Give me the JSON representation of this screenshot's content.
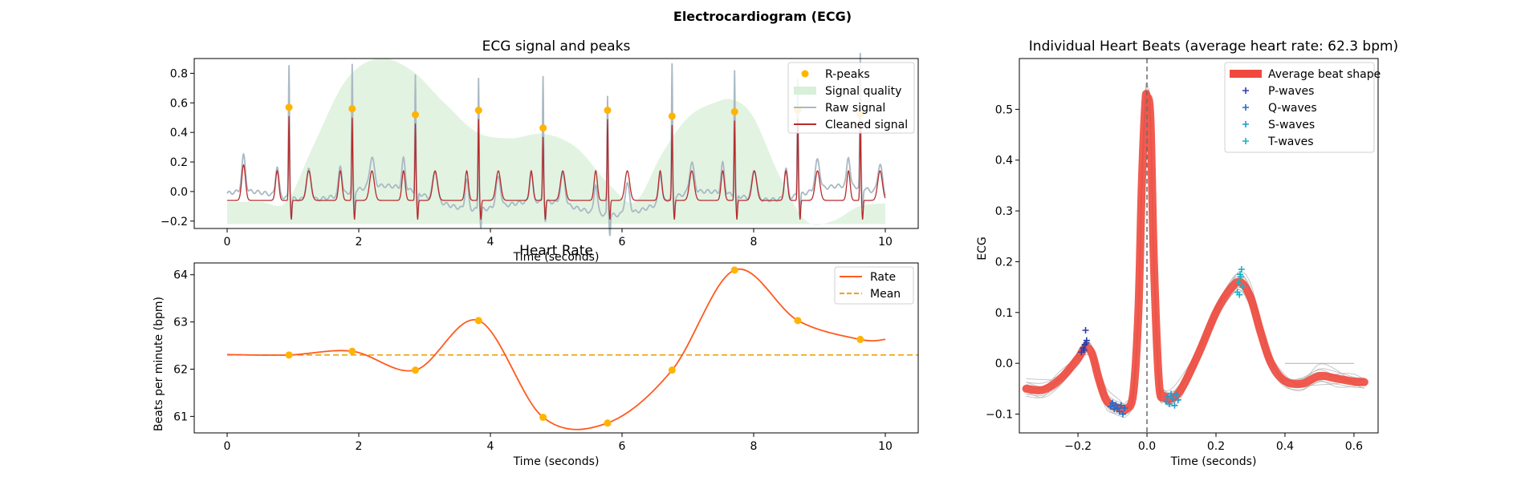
{
  "figure": {
    "title": "Electrocardiogram (ECG)",
    "colors": {
      "raw": "#a9b9c4",
      "cleaned": "#b52b2b",
      "quality_fill": "#d8efd8",
      "peaks": "#ffb400",
      "rate": "#ff5a1f",
      "mean": "#f0a30a",
      "avg_beat": "#f0493d",
      "p_waves": "#2b3fa8",
      "q_waves": "#1f6ecf",
      "s_waves": "#1f9bd1",
      "t_waves": "#17b3c6",
      "beat_lines": "#b0b0b0",
      "vline": "#6a6a6a"
    }
  },
  "chart_data": [
    {
      "id": "signal",
      "type": "line",
      "title": "ECG signal and peaks",
      "xlabel": "Time (seconds)",
      "ylabel": "",
      "xlim": [
        -0.5,
        10.5
      ],
      "ylim": [
        -0.25,
        0.9
      ],
      "xticks": [
        0,
        2,
        4,
        6,
        8,
        10
      ],
      "yticks": [
        -0.2,
        0.0,
        0.2,
        0.4,
        0.6,
        0.8
      ],
      "ytick_labels": [
        "−0.2",
        "0.0",
        "0.2",
        "0.4",
        "0.6",
        "0.8"
      ],
      "legend_position": "top-right",
      "legend": [
        "R-peaks",
        "Signal quality",
        "Raw signal",
        "Cleaned signal"
      ],
      "r_peaks": {
        "x": [
          0.94,
          1.9,
          2.86,
          3.82,
          4.8,
          5.78,
          6.76,
          7.71,
          8.67,
          9.62
        ],
        "y": [
          0.57,
          0.56,
          0.52,
          0.55,
          0.43,
          0.55,
          0.51,
          0.54,
          0.55,
          0.52
        ]
      },
      "signal_quality": {
        "x": [
          0.0,
          0.5,
          0.9,
          1.3,
          1.8,
          2.3,
          2.8,
          3.3,
          3.8,
          4.3,
          4.8,
          5.3,
          5.8,
          6.2,
          6.6,
          7.0,
          7.4,
          7.7,
          8.0,
          8.4,
          8.8,
          9.2,
          9.6,
          10.0
        ],
        "y": [
          -0.07,
          -0.07,
          -0.07,
          0.3,
          0.75,
          0.9,
          0.82,
          0.6,
          0.4,
          0.36,
          0.39,
          0.3,
          0.05,
          -0.07,
          0.25,
          0.5,
          0.6,
          0.62,
          0.5,
          0.1,
          -0.2,
          -0.2,
          -0.1,
          -0.08
        ]
      },
      "baseline_fill": -0.22
    },
    {
      "id": "rate",
      "type": "line",
      "title": "Heart Rate",
      "xlabel": "Time (seconds)",
      "ylabel": "Beats per minute (bpm)",
      "xlim": [
        -0.5,
        10.5
      ],
      "ylim": [
        60.65,
        64.25
      ],
      "xticks": [
        0,
        2,
        4,
        6,
        8,
        10
      ],
      "yticks": [
        61,
        62,
        63,
        64
      ],
      "legend_position": "top-right",
      "legend": [
        "Rate",
        "Mean"
      ],
      "mean": 62.3,
      "points": {
        "x": [
          0.94,
          1.9,
          2.86,
          3.82,
          4.8,
          5.78,
          6.76,
          7.71,
          8.67,
          9.62
        ],
        "y": [
          62.3,
          62.38,
          61.98,
          63.03,
          60.98,
          60.86,
          61.98,
          64.1,
          63.03,
          62.63
        ]
      },
      "curve_start": [
        0.0,
        62.31
      ],
      "curve_end": [
        10.0,
        62.63
      ]
    },
    {
      "id": "beats",
      "type": "line",
      "title": "Individual Heart Beats (average heart rate: 62.3 bpm)",
      "xlabel": "Time (seconds)",
      "ylabel": "ECG",
      "xlim": [
        -0.37,
        0.67
      ],
      "ylim": [
        -0.137,
        0.6
      ],
      "xticks": [
        -0.2,
        0.0,
        0.2,
        0.4,
        0.6
      ],
      "xtick_labels": [
        "−0.2",
        "0.0",
        "0.2",
        "0.4",
        "0.6"
      ],
      "yticks": [
        -0.1,
        0.0,
        0.1,
        0.2,
        0.3,
        0.4,
        0.5
      ],
      "ytick_labels": [
        "−0.1",
        "0.0",
        "0.1",
        "0.2",
        "0.3",
        "0.4",
        "0.5"
      ],
      "legend_position": "top-right",
      "legend": [
        "Average beat shape",
        "P-waves",
        "Q-waves",
        "S-waves",
        "T-waves"
      ],
      "average_beat": {
        "x": [
          -0.35,
          -0.3,
          -0.25,
          -0.2,
          -0.18,
          -0.16,
          -0.14,
          -0.12,
          -0.1,
          -0.08,
          -0.06,
          -0.04,
          -0.025,
          -0.015,
          -0.005,
          0.0,
          0.01,
          0.02,
          0.035,
          0.05,
          0.07,
          0.1,
          0.15,
          0.2,
          0.24,
          0.27,
          0.3,
          0.33,
          0.36,
          0.4,
          0.45,
          0.5,
          0.55,
          0.6,
          0.63
        ],
        "y": [
          -0.05,
          -0.052,
          -0.03,
          0.01,
          0.03,
          0.02,
          -0.03,
          -0.07,
          -0.083,
          -0.088,
          -0.09,
          -0.06,
          0.1,
          0.35,
          0.51,
          0.525,
          0.48,
          0.2,
          -0.04,
          -0.065,
          -0.07,
          -0.05,
          0.02,
          0.1,
          0.145,
          0.16,
          0.13,
          0.06,
          0.0,
          -0.035,
          -0.04,
          -0.025,
          -0.03,
          -0.036,
          -0.037
        ]
      },
      "p_waves": {
        "x": [
          -0.19,
          -0.185,
          -0.18,
          -0.175,
          -0.178,
          -0.182,
          -0.176
        ],
        "y": [
          0.022,
          0.03,
          0.037,
          0.045,
          0.065,
          0.026,
          0.04
        ]
      },
      "q_waves": {
        "x": [
          -0.105,
          -0.1,
          -0.095,
          -0.09,
          -0.085,
          -0.08,
          -0.075,
          -0.07,
          -0.065
        ],
        "y": [
          -0.085,
          -0.078,
          -0.09,
          -0.082,
          -0.088,
          -0.095,
          -0.083,
          -0.1,
          -0.088
        ]
      },
      "s_waves": {
        "x": [
          0.055,
          0.06,
          0.065,
          0.07,
          0.075,
          0.08,
          0.085,
          0.09
        ],
        "y": [
          -0.075,
          -0.065,
          -0.08,
          -0.06,
          -0.07,
          -0.083,
          -0.062,
          -0.072
        ]
      },
      "t_waves": {
        "x": [
          0.262,
          0.266,
          0.27,
          0.274,
          0.278,
          0.268,
          0.272
        ],
        "y": [
          0.14,
          0.16,
          0.175,
          0.185,
          0.15,
          0.135,
          0.17
        ]
      }
    }
  ]
}
